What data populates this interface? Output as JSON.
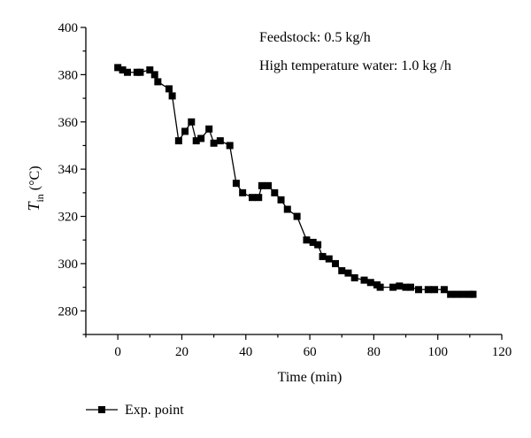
{
  "chart_data": {
    "type": "line",
    "xlabel": "Time (min)",
    "ylabel_main": "T",
    "ylabel_sub": "in",
    "ylabel_unit": " (°C)",
    "xlim": [
      -10,
      120
    ],
    "ylim": [
      270,
      400
    ],
    "xticks": [
      0,
      20,
      40,
      60,
      80,
      100,
      120
    ],
    "yticks": [
      280,
      300,
      320,
      340,
      360,
      380,
      400
    ],
    "annotations": [
      "Feedstock: 0.5 kg/h",
      "High temperature water: 1.0 kg /h"
    ],
    "legend_position": "bottom-left",
    "series": [
      {
        "name": "Exp. point",
        "color": "#000000",
        "marker": "square",
        "x": [
          0,
          1.5,
          3,
          6,
          7,
          10,
          11.5,
          12.5,
          16,
          17,
          19,
          21,
          23,
          24.5,
          26,
          28.5,
          30,
          32,
          35,
          37,
          39,
          42,
          44,
          45,
          47,
          49,
          51,
          53,
          56,
          59,
          61,
          62.5,
          64,
          66,
          68,
          70,
          72,
          74,
          77,
          79,
          81,
          82,
          86,
          88,
          90,
          91.5,
          94,
          97,
          99,
          102,
          104,
          106,
          108,
          110,
          111
        ],
        "y": [
          383,
          382,
          381,
          381,
          381,
          382,
          380,
          377,
          374,
          371,
          352,
          356,
          360,
          352,
          353,
          357,
          351,
          352,
          350,
          334,
          330,
          328,
          328,
          333,
          333,
          330,
          327,
          323,
          320,
          310,
          309,
          308,
          303,
          302,
          300,
          297,
          296,
          294,
          293,
          292,
          291,
          290,
          290,
          290.5,
          290,
          290,
          289,
          289,
          289,
          289,
          287,
          287,
          287,
          287,
          287
        ]
      }
    ]
  }
}
